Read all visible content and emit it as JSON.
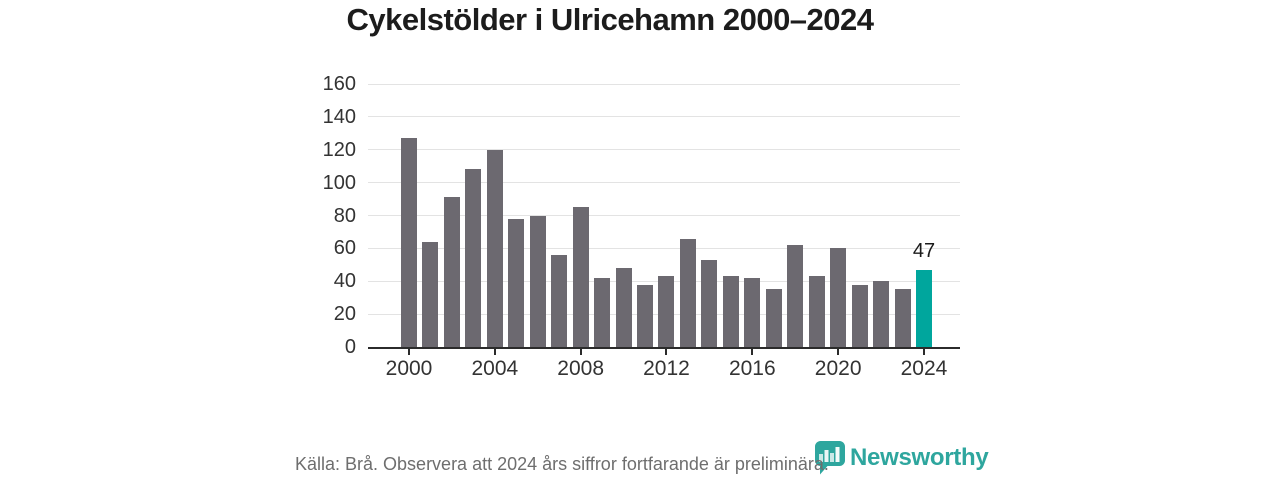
{
  "title": "Cykelstölder i Ulricehamn 2000–2024",
  "chart_data": {
    "type": "bar",
    "title": "Cykelstölder i Ulricehamn 2000–2024",
    "categories": [
      2000,
      2001,
      2002,
      2003,
      2004,
      2005,
      2006,
      2007,
      2008,
      2009,
      2010,
      2011,
      2012,
      2013,
      2014,
      2015,
      2016,
      2017,
      2018,
      2019,
      2020,
      2021,
      2022,
      2023,
      2024
    ],
    "values": [
      127,
      64,
      91,
      108,
      120,
      78,
      80,
      56,
      85,
      42,
      48,
      38,
      43,
      66,
      53,
      43,
      42,
      35,
      62,
      43,
      60,
      38,
      40,
      35,
      47
    ],
    "highlight_index": 24,
    "highlight_label": "47",
    "xlabel": "",
    "ylabel": "",
    "ylim": [
      0,
      160
    ],
    "ytick_step": 20,
    "xticks": [
      2000,
      2004,
      2008,
      2012,
      2016,
      2020,
      2024
    ],
    "grid": true,
    "legend": false
  },
  "footer": {
    "source_text": "Källa: Brå. Observera att 2024 års siffror fortfarande är preliminära.",
    "brand": "Newsworthy"
  },
  "colors": {
    "bar_gray": "#6c6970",
    "highlight_teal": "#00a69d",
    "logo_teal": "#2ea69e",
    "gridline": "#e3e3e3",
    "axis_dark": "#2b2b2b",
    "axis_text": "#333333",
    "title_text": "#1c1c1c",
    "muted_text": "#6e6e6e"
  }
}
